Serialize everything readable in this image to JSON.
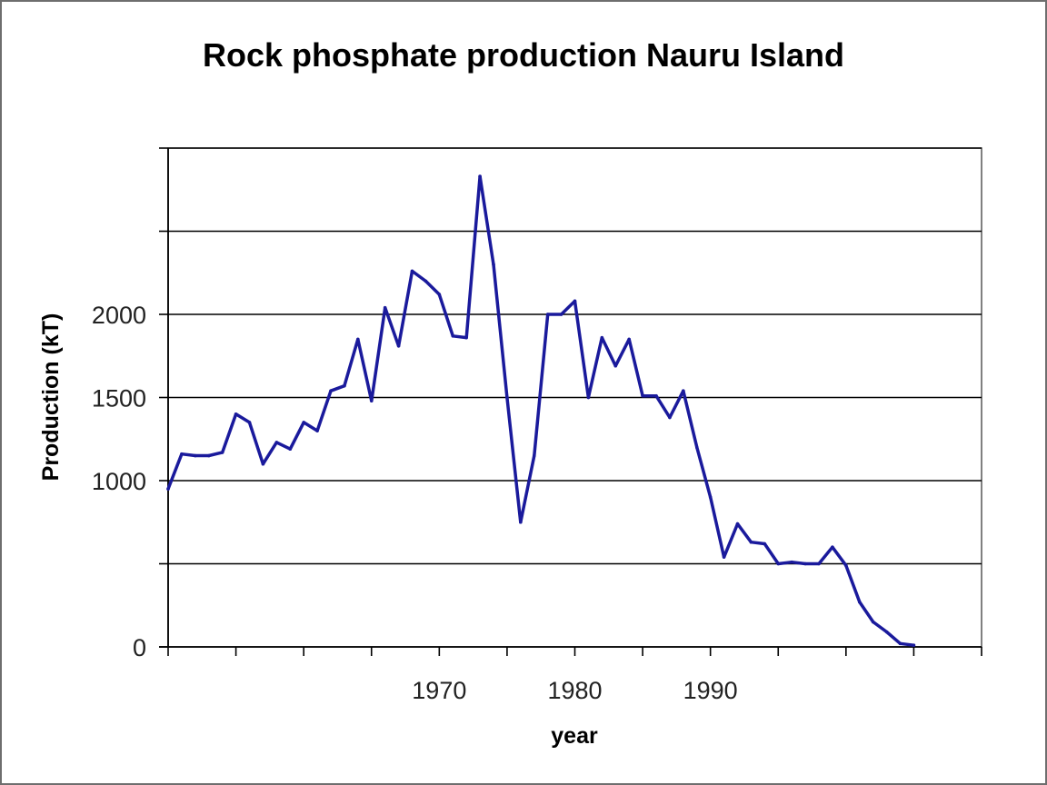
{
  "chart_data": {
    "type": "line",
    "title": "Rock phosphate production Nauru Island",
    "xlabel": "year",
    "ylabel": "Production (kT)",
    "xlim": [
      1950,
      2010
    ],
    "ylim": [
      0,
      3000
    ],
    "grid": true,
    "legend": "none",
    "x_tick_labels": [
      {
        "value": 1970,
        "label": "1970"
      },
      {
        "value": 1980,
        "label": "1980"
      },
      {
        "value": 1990,
        "label": "1990"
      }
    ],
    "y_tick_labels": [
      {
        "value": 0,
        "label": "0"
      },
      {
        "value": 1000,
        "label": "1000"
      },
      {
        "value": 1500,
        "label": "1500"
      },
      {
        "value": 2000,
        "label": "2000"
      }
    ],
    "series": [
      {
        "color": "#1a1a9c",
        "x": [
          1950,
          1951,
          1952,
          1953,
          1954,
          1955,
          1956,
          1957,
          1958,
          1959,
          1960,
          1961,
          1962,
          1963,
          1964,
          1965,
          1966,
          1967,
          1968,
          1969,
          1970,
          1971,
          1972,
          1973,
          1974,
          1975,
          1976,
          1977,
          1978,
          1979,
          1980,
          1981,
          1982,
          1983,
          1984,
          1985,
          1986,
          1987,
          1988,
          1989,
          1990,
          1991,
          1992,
          1993,
          1994,
          1995,
          1996,
          1997,
          1998,
          1999,
          2000,
          2001,
          2002,
          2003,
          2004,
          2005
        ],
        "y": [
          950,
          1160,
          1150,
          1150,
          1170,
          1400,
          1350,
          1100,
          1230,
          1190,
          1350,
          1300,
          1540,
          1570,
          1850,
          1480,
          2040,
          1810,
          2260,
          2200,
          2120,
          1870,
          1860,
          2830,
          2300,
          1500,
          750,
          1150,
          2000,
          2000,
          2080,
          1500,
          1860,
          1690,
          1850,
          1510,
          1510,
          1380,
          1540,
          1200,
          900,
          540,
          740,
          630,
          620,
          500,
          510,
          500,
          500,
          600,
          490,
          270,
          150,
          90,
          20,
          10
        ]
      }
    ]
  }
}
